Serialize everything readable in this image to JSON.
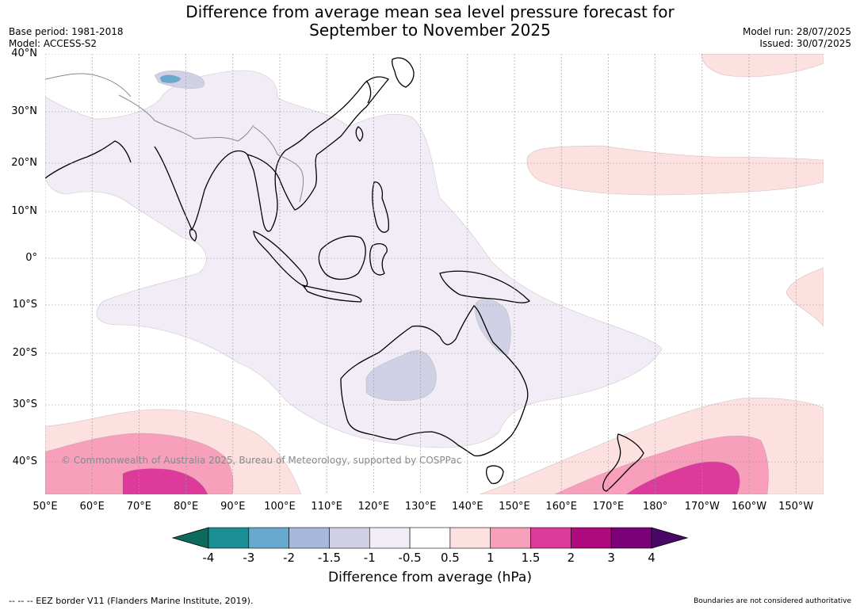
{
  "header": {
    "title_line1": "Difference from average mean sea level pressure forecast for",
    "title_line2": "September to November 2025",
    "base_period": "Base period: 1981-2018",
    "model": "Model: ACCESS-S2",
    "model_run": "Model run: 28/07/2025",
    "issued": "Issued: 30/07/2025"
  },
  "map": {
    "lat_labels": [
      "40°N",
      "30°N",
      "20°N",
      "10°N",
      "0°",
      "10°S",
      "20°S",
      "30°S",
      "40°S"
    ],
    "lon_labels": [
      "50°E",
      "60°E",
      "70°E",
      "80°E",
      "90°E",
      "100°E",
      "110°E",
      "120°E",
      "130°E",
      "140°E",
      "150°E",
      "160°E",
      "170°E",
      "180°",
      "170°W",
      "160°W",
      "150°W"
    ],
    "copyright": "© Commonwealth of Australia 2025, Bureau of Meteorology, supported by COSPPac",
    "anomaly_regions": [
      {
        "name": "tropical-weak-negative",
        "category": "-1 to -0.5 hPa"
      },
      {
        "name": "central-australia-negative",
        "category": "-1.5 to -1 hPa"
      },
      {
        "name": "queensland-negative",
        "category": "-1.5 to -1 hPa"
      },
      {
        "name": "himalaya-negative",
        "category": "-4 to -1.5 hPa"
      },
      {
        "name": "north-pacific-positive",
        "category": "0.5 to 1 hPa"
      },
      {
        "name": "southern-ocean-positive",
        "category": "0.5 to 2 hPa"
      },
      {
        "name": "tasman-positive",
        "category": "0.5 to 2 hPa"
      }
    ]
  },
  "colorbar": {
    "label": "Difference from average (hPa)",
    "ticks": [
      "-4",
      "-3",
      "-2",
      "-1.5",
      "-1",
      "-0.5",
      "0.5",
      "1",
      "1.5",
      "2",
      "3",
      "4"
    ],
    "under_color": "#0b6b5e",
    "over_color": "#4a0866",
    "colors": [
      "#1b8e94",
      "#67a9cf",
      "#a6b9da",
      "#d0d1e6",
      "#f2ecf6",
      "#ffffff",
      "#fde0e0",
      "#f89fbb",
      "#dd3b9c",
      "#ae0a7d",
      "#7a0177"
    ]
  },
  "footer": {
    "eez_note": "--  --  -- EEZ border V11 (Flanders Marine Institute, 2019).",
    "boundaries_note": "Boundaries are not considered authoritative"
  }
}
